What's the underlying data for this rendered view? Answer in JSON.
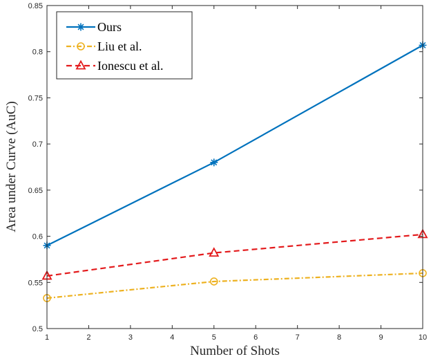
{
  "chart_data": {
    "type": "line",
    "title": "",
    "xlabel": "Number of Shots",
    "ylabel": "Area under Curve (AuC)",
    "xlim": [
      1,
      10
    ],
    "ylim": [
      0.5,
      0.85
    ],
    "xticks": [
      1,
      2,
      3,
      4,
      5,
      6,
      7,
      8,
      9,
      10
    ],
    "yticks": [
      0.5,
      0.55,
      0.6,
      0.65,
      0.7,
      0.75,
      0.8,
      0.85
    ],
    "ytick_labels": [
      "0.5",
      "0.55",
      "0.6",
      "0.65",
      "0.7",
      "0.75",
      "0.8",
      "0.85"
    ],
    "grid": false,
    "legend_position": "top-left",
    "series": [
      {
        "name": "Ours",
        "x": [
          1,
          5,
          10
        ],
        "values": [
          0.59,
          0.68,
          0.807
        ],
        "color": "#0072BD",
        "marker": "asterisk",
        "line_style": "solid"
      },
      {
        "name": "Liu et al.",
        "x": [
          1,
          5,
          10
        ],
        "values": [
          0.533,
          0.551,
          0.56
        ],
        "color": "#EDB120",
        "marker": "circle",
        "line_style": "dash-dot"
      },
      {
        "name": "Ionescu et al.",
        "x": [
          1,
          5,
          10
        ],
        "values": [
          0.557,
          0.582,
          0.602
        ],
        "color": "#E31A1C",
        "marker": "triangle",
        "line_style": "dashed"
      }
    ]
  }
}
